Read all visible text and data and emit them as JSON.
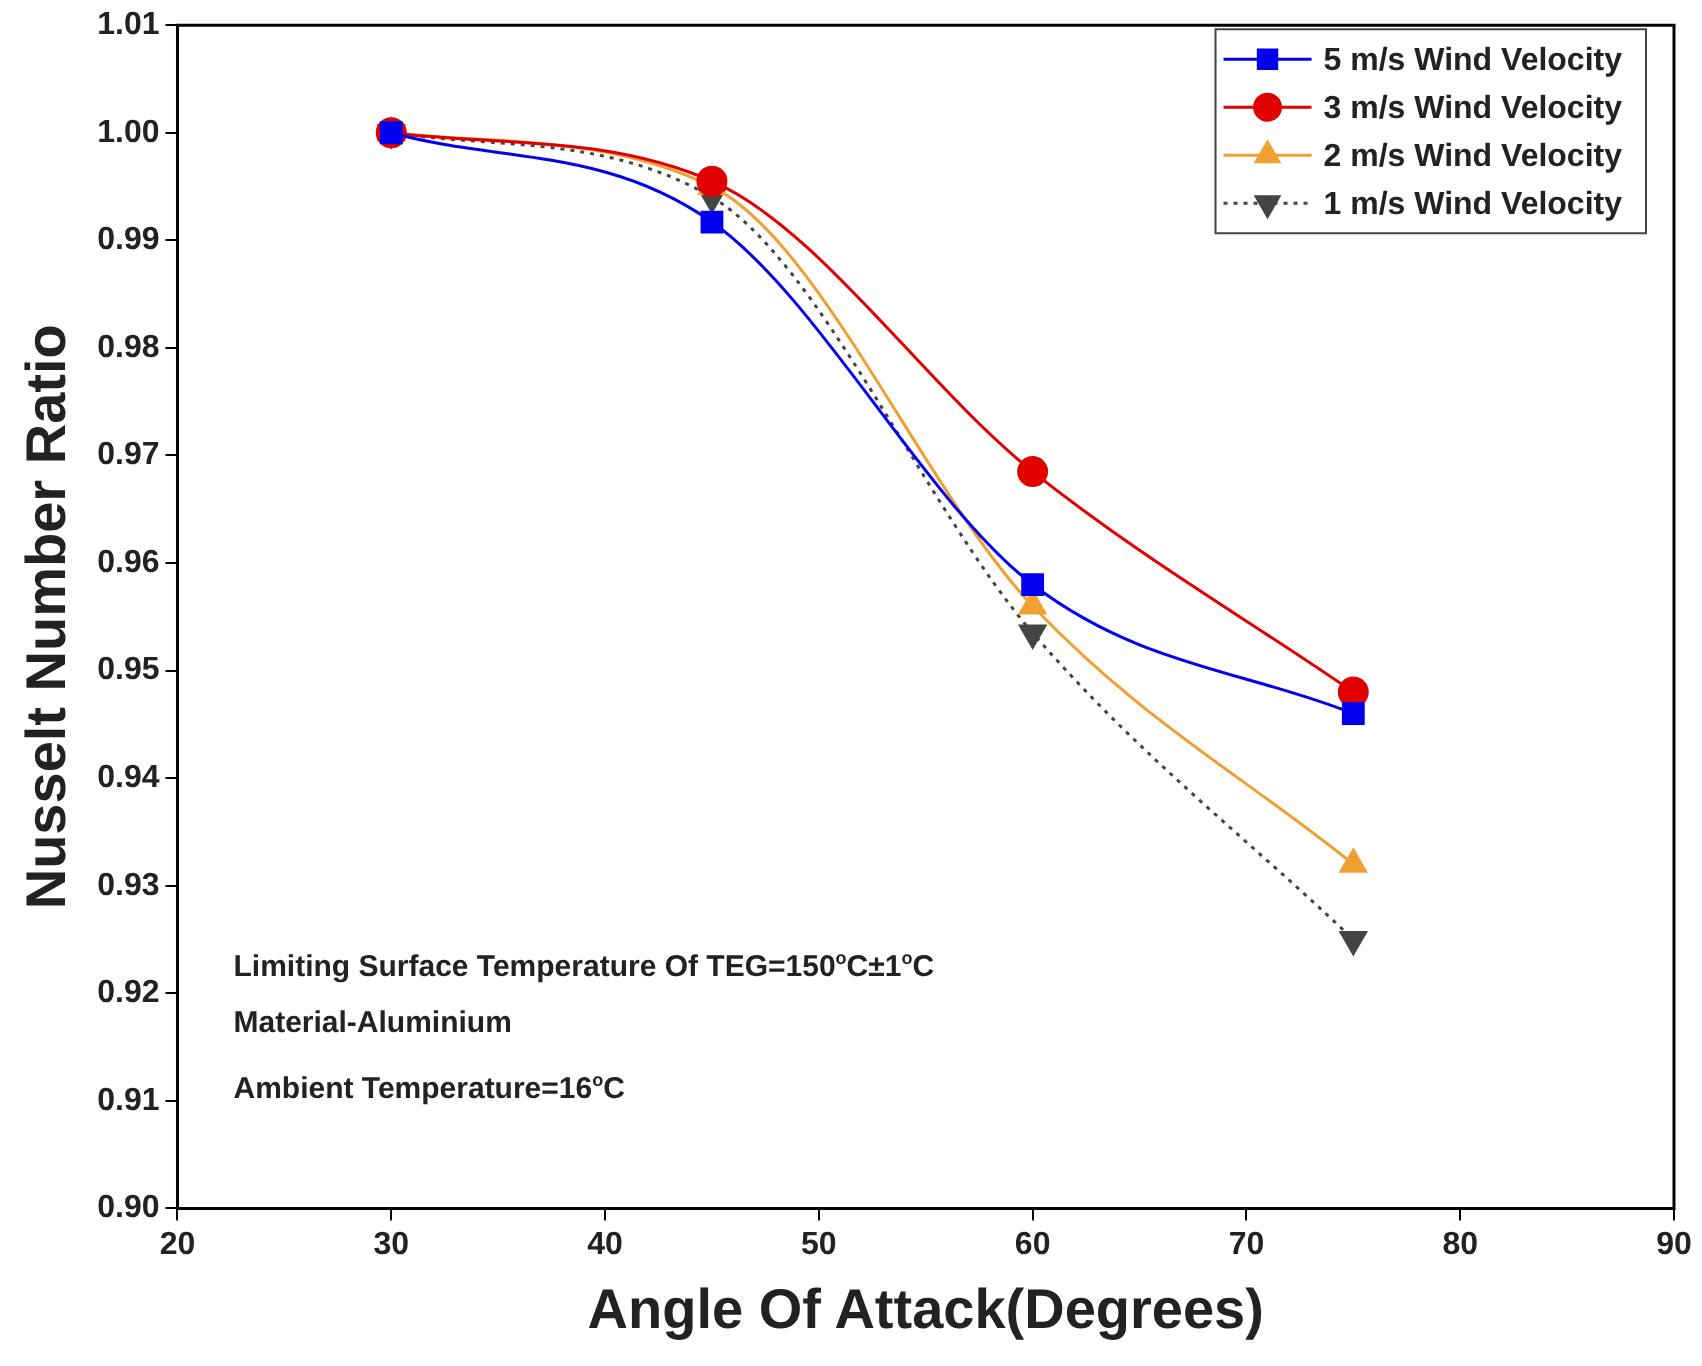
{
  "chart_data": {
    "type": "line",
    "xlabel": "Angle Of Attack(Degrees)",
    "ylabel": "Nusselt Number Ratio",
    "x": [
      30,
      45,
      60,
      75
    ],
    "series": [
      {
        "name": "5 m/s Wind Velocity",
        "color": "#0000ee",
        "marker": "square",
        "line_style": "solid",
        "values": [
          1.0,
          0.9917,
          0.958,
          0.946
        ]
      },
      {
        "name": "3 m/s Wind Velocity",
        "color": "#e00000",
        "marker": "circle",
        "line_style": "solid",
        "values": [
          1.0,
          0.9955,
          0.9685,
          0.948
        ]
      },
      {
        "name": "2 m/s Wind Velocity",
        "color": "#f0a030",
        "marker": "triangle",
        "line_style": "solid",
        "values": [
          1.0,
          0.995,
          0.956,
          0.932
        ]
      },
      {
        "name": "1 m/s Wind Velocity",
        "color": "#444444",
        "marker": "triangle-down",
        "line_style": "dotted",
        "values": [
          1.0,
          0.994,
          0.9535,
          0.925
        ]
      }
    ],
    "xlim": [
      20,
      90
    ],
    "xticks": [
      20,
      30,
      40,
      50,
      60,
      70,
      80,
      90
    ],
    "ylim": [
      0.9,
      1.01
    ],
    "yticks": [
      {
        "value": 0.9,
        "label": "0.90"
      },
      0.91,
      0.92,
      0.93,
      0.94,
      0.95,
      0.96,
      0.97,
      0.98,
      0.99,
      {
        "value": 1.0,
        "label": "1.00"
      },
      1.01
    ],
    "grid": false,
    "legend": "top right",
    "annotations": [
      "Limiting Surface Temperature Of TEG=150$^{o}$C±1$^{o}$C",
      "Material-Aluminium",
      "Ambient Temperature=16$^{o}$C"
    ]
  }
}
